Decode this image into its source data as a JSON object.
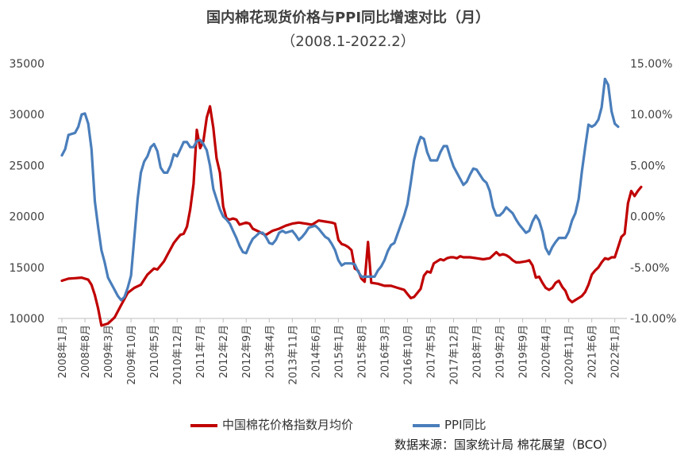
{
  "chart_data": {
    "type": "line",
    "title": "国内棉花现货价格与PPI同比增速对比（月）",
    "subtitle": "（2008.1-2022.2）",
    "source": "数据来源：国家统计局 棉花展望（BCO）",
    "y_left": {
      "ylim": [
        10000,
        35000
      ],
      "ticks": [
        "10000",
        "15000",
        "20000",
        "25000",
        "30000",
        "35000"
      ]
    },
    "y_right": {
      "ylim": [
        -10,
        15
      ],
      "ticks": [
        "-10.00%",
        "-5.00%",
        "0.00%",
        "5.00%",
        "10.00%",
        "15.00%"
      ]
    },
    "x_ticks": [
      "2008年1月",
      "2008年8月",
      "2009年3月",
      "2009年10月",
      "2010年5月",
      "2010年12月",
      "2011年7月",
      "2012年2月",
      "2012年9月",
      "2013年4月",
      "2013年11月",
      "2014年6月",
      "2015年1月",
      "2015年8月",
      "2016年3月",
      "2016年10月",
      "2017年5月",
      "2017年12月",
      "2018年7月",
      "2019年2月",
      "2019年9月",
      "2020年4月",
      "2020年11月",
      "2021年6月",
      "2022年1月"
    ],
    "grid": false,
    "legend_position": "bottom",
    "series": [
      {
        "name": "中国棉花价格指数月均价",
        "axis": "left",
        "color": "#C00000",
        "values": [
          [
            0,
            13700
          ],
          [
            2,
            13900
          ],
          [
            4,
            13950
          ],
          [
            6,
            14000
          ],
          [
            8,
            13800
          ],
          [
            9,
            13300
          ],
          [
            10,
            12300
          ],
          [
            11,
            11000
          ],
          [
            12,
            9300
          ],
          [
            14,
            9500
          ],
          [
            16,
            10100
          ],
          [
            18,
            11300
          ],
          [
            20,
            12500
          ],
          [
            22,
            13000
          ],
          [
            24,
            13300
          ],
          [
            26,
            14300
          ],
          [
            28,
            14900
          ],
          [
            29,
            14800
          ],
          [
            31,
            15600
          ],
          [
            32,
            16200
          ],
          [
            34,
            17400
          ],
          [
            35,
            17800
          ],
          [
            36,
            18200
          ],
          [
            37,
            18300
          ],
          [
            38,
            19000
          ],
          [
            39,
            20700
          ],
          [
            40,
            23200
          ],
          [
            41,
            28500
          ],
          [
            42,
            26700
          ],
          [
            43,
            27400
          ],
          [
            44,
            29700
          ],
          [
            45,
            30800
          ],
          [
            46,
            28700
          ],
          [
            47,
            25700
          ],
          [
            48,
            24300
          ],
          [
            49,
            21000
          ],
          [
            50,
            19800
          ],
          [
            51,
            19700
          ],
          [
            52,
            19800
          ],
          [
            53,
            19700
          ],
          [
            54,
            19200
          ],
          [
            56,
            19400
          ],
          [
            57,
            19300
          ],
          [
            58,
            18800
          ],
          [
            60,
            18500
          ],
          [
            61,
            18300
          ],
          [
            62,
            18200
          ],
          [
            64,
            18600
          ],
          [
            66,
            18800
          ],
          [
            68,
            19100
          ],
          [
            70,
            19300
          ],
          [
            72,
            19400
          ],
          [
            74,
            19300
          ],
          [
            76,
            19200
          ],
          [
            78,
            19600
          ],
          [
            80,
            19500
          ],
          [
            82,
            19400
          ],
          [
            83,
            19300
          ],
          [
            84,
            17700
          ],
          [
            85,
            17300
          ],
          [
            86,
            17200
          ],
          [
            87,
            17000
          ],
          [
            88,
            16700
          ],
          [
            89,
            14900
          ],
          [
            90,
            14700
          ],
          [
            91,
            13900
          ],
          [
            92,
            13600
          ],
          [
            93,
            17500
          ],
          [
            94,
            13500
          ],
          [
            96,
            13400
          ],
          [
            98,
            13200
          ],
          [
            100,
            13200
          ],
          [
            102,
            13000
          ],
          [
            104,
            12800
          ],
          [
            105,
            12400
          ],
          [
            106,
            12000
          ],
          [
            107,
            12100
          ],
          [
            108,
            12500
          ],
          [
            109,
            12900
          ],
          [
            110,
            14200
          ],
          [
            111,
            14600
          ],
          [
            112,
            14500
          ],
          [
            113,
            15400
          ],
          [
            115,
            15800
          ],
          [
            116,
            15700
          ],
          [
            117,
            15900
          ],
          [
            118,
            16000
          ],
          [
            119,
            16000
          ],
          [
            120,
            15900
          ],
          [
            121,
            16100
          ],
          [
            122,
            16000
          ],
          [
            124,
            16000
          ],
          [
            126,
            15900
          ],
          [
            128,
            15800
          ],
          [
            130,
            15900
          ],
          [
            131,
            16200
          ],
          [
            132,
            16500
          ],
          [
            133,
            16200
          ],
          [
            134,
            16300
          ],
          [
            135,
            16200
          ],
          [
            136,
            16000
          ],
          [
            137,
            15700
          ],
          [
            138,
            15500
          ],
          [
            139,
            15500
          ],
          [
            141,
            15600
          ],
          [
            142,
            15700
          ],
          [
            143,
            15200
          ],
          [
            144,
            14000
          ],
          [
            145,
            14100
          ],
          [
            146,
            13500
          ],
          [
            147,
            13000
          ],
          [
            148,
            12800
          ],
          [
            149,
            13000
          ],
          [
            150,
            13500
          ],
          [
            151,
            13700
          ],
          [
            152,
            13100
          ],
          [
            153,
            12700
          ],
          [
            154,
            11900
          ],
          [
            155,
            11600
          ],
          [
            156,
            11800
          ],
          [
            157,
            12000
          ],
          [
            158,
            12200
          ],
          [
            159,
            12600
          ],
          [
            160,
            13300
          ],
          [
            161,
            14300
          ],
          [
            162,
            14700
          ],
          [
            163,
            15000
          ],
          [
            164,
            15500
          ],
          [
            165,
            15900
          ],
          [
            166,
            15800
          ],
          [
            167,
            16000
          ],
          [
            168,
            16000
          ],
          [
            169,
            17000
          ],
          [
            170,
            18000
          ],
          [
            171,
            18300
          ],
          [
            172,
            21300
          ],
          [
            173,
            22500
          ],
          [
            174,
            22000
          ],
          [
            175,
            22500
          ],
          [
            176,
            22900
          ]
        ]
      },
      {
        "name": "PPI同比",
        "axis": "right",
        "color": "#4A7EBB",
        "values": [
          [
            0,
            6.0
          ],
          [
            1,
            6.6
          ],
          [
            2,
            8.0
          ],
          [
            4,
            8.2
          ],
          [
            5,
            8.8
          ],
          [
            6,
            10.0
          ],
          [
            7,
            10.1
          ],
          [
            8,
            9.1
          ],
          [
            9,
            6.6
          ],
          [
            10,
            1.5
          ],
          [
            11,
            -1.0
          ],
          [
            12,
            -3.3
          ],
          [
            13,
            -4.5
          ],
          [
            14,
            -6.0
          ],
          [
            15,
            -6.6
          ],
          [
            16,
            -7.2
          ],
          [
            17,
            -7.8
          ],
          [
            18,
            -8.2
          ],
          [
            19,
            -7.9
          ],
          [
            20,
            -7.0
          ],
          [
            21,
            -5.8
          ],
          [
            22,
            -2.1
          ],
          [
            23,
            1.7
          ],
          [
            24,
            4.3
          ],
          [
            25,
            5.4
          ],
          [
            26,
            5.9
          ],
          [
            27,
            6.8
          ],
          [
            28,
            7.1
          ],
          [
            29,
            6.4
          ],
          [
            30,
            4.8
          ],
          [
            31,
            4.3
          ],
          [
            32,
            4.3
          ],
          [
            33,
            5.0
          ],
          [
            34,
            6.1
          ],
          [
            35,
            5.9
          ],
          [
            36,
            6.6
          ],
          [
            37,
            7.3
          ],
          [
            38,
            7.3
          ],
          [
            39,
            6.8
          ],
          [
            40,
            6.8
          ],
          [
            41,
            7.4
          ],
          [
            42,
            7.5
          ],
          [
            43,
            7.1
          ],
          [
            44,
            6.5
          ],
          [
            45,
            5.0
          ],
          [
            46,
            2.7
          ],
          [
            47,
            1.7
          ],
          [
            48,
            0.7
          ],
          [
            49,
            0.0
          ],
          [
            50,
            -0.3
          ],
          [
            51,
            -0.7
          ],
          [
            52,
            -1.4
          ],
          [
            53,
            -2.1
          ],
          [
            54,
            -2.9
          ],
          [
            55,
            -3.5
          ],
          [
            56,
            -3.6
          ],
          [
            57,
            -2.8
          ],
          [
            58,
            -2.2
          ],
          [
            59,
            -1.9
          ],
          [
            60,
            -1.6
          ],
          [
            61,
            -1.6
          ],
          [
            62,
            -2.0
          ],
          [
            63,
            -2.6
          ],
          [
            64,
            -2.7
          ],
          [
            65,
            -2.3
          ],
          [
            66,
            -1.6
          ],
          [
            67,
            -1.4
          ],
          [
            68,
            -1.6
          ],
          [
            69,
            -1.5
          ],
          [
            70,
            -1.4
          ],
          [
            71,
            -1.8
          ],
          [
            72,
            -2.3
          ],
          [
            73,
            -2.0
          ],
          [
            74,
            -1.6
          ],
          [
            75,
            -1.1
          ],
          [
            76,
            -1.0
          ],
          [
            77,
            -0.9
          ],
          [
            78,
            -1.2
          ],
          [
            79,
            -1.6
          ],
          [
            80,
            -2.0
          ],
          [
            81,
            -2.2
          ],
          [
            82,
            -2.7
          ],
          [
            83,
            -3.3
          ],
          [
            84,
            -4.3
          ],
          [
            85,
            -4.8
          ],
          [
            86,
            -4.6
          ],
          [
            87,
            -4.6
          ],
          [
            88,
            -4.6
          ],
          [
            89,
            -4.7
          ],
          [
            90,
            -5.4
          ],
          [
            91,
            -5.9
          ],
          [
            92,
            -5.9
          ],
          [
            93,
            -5.9
          ],
          [
            94,
            -5.9
          ],
          [
            95,
            -5.9
          ],
          [
            96,
            -5.3
          ],
          [
            97,
            -4.9
          ],
          [
            98,
            -4.3
          ],
          [
            99,
            -3.4
          ],
          [
            100,
            -2.8
          ],
          [
            101,
            -2.6
          ],
          [
            102,
            -1.7
          ],
          [
            103,
            -0.8
          ],
          [
            104,
            0.1
          ],
          [
            105,
            1.2
          ],
          [
            106,
            3.3
          ],
          [
            107,
            5.5
          ],
          [
            108,
            6.9
          ],
          [
            109,
            7.8
          ],
          [
            110,
            7.6
          ],
          [
            111,
            6.3
          ],
          [
            112,
            5.5
          ],
          [
            113,
            5.5
          ],
          [
            114,
            5.5
          ],
          [
            115,
            6.3
          ],
          [
            116,
            6.9
          ],
          [
            117,
            6.9
          ],
          [
            118,
            5.8
          ],
          [
            119,
            4.9
          ],
          [
            120,
            4.3
          ],
          [
            121,
            3.7
          ],
          [
            122,
            3.1
          ],
          [
            123,
            3.4
          ],
          [
            124,
            4.1
          ],
          [
            125,
            4.7
          ],
          [
            126,
            4.6
          ],
          [
            127,
            4.1
          ],
          [
            128,
            3.6
          ],
          [
            129,
            3.3
          ],
          [
            130,
            2.5
          ],
          [
            131,
            0.9
          ],
          [
            132,
            0.1
          ],
          [
            133,
            0.1
          ],
          [
            134,
            0.4
          ],
          [
            135,
            0.9
          ],
          [
            136,
            0.6
          ],
          [
            137,
            0.3
          ],
          [
            138,
            -0.3
          ],
          [
            139,
            -0.8
          ],
          [
            140,
            -1.2
          ],
          [
            141,
            -1.6
          ],
          [
            142,
            -1.4
          ],
          [
            143,
            -0.5
          ],
          [
            144,
            0.1
          ],
          [
            145,
            -0.4
          ],
          [
            146,
            -1.5
          ],
          [
            147,
            -3.1
          ],
          [
            148,
            -3.7
          ],
          [
            149,
            -3.0
          ],
          [
            150,
            -2.5
          ],
          [
            151,
            -2.1
          ],
          [
            152,
            -2.1
          ],
          [
            153,
            -2.1
          ],
          [
            154,
            -1.5
          ],
          [
            155,
            -0.4
          ],
          [
            156,
            0.3
          ],
          [
            157,
            1.7
          ],
          [
            158,
            4.4
          ],
          [
            159,
            6.8
          ],
          [
            160,
            9.0
          ],
          [
            161,
            8.8
          ],
          [
            162,
            9.0
          ],
          [
            163,
            9.5
          ],
          [
            164,
            10.7
          ],
          [
            165,
            13.5
          ],
          [
            166,
            12.9
          ],
          [
            167,
            10.3
          ],
          [
            168,
            9.1
          ],
          [
            169,
            8.8
          ]
        ]
      }
    ]
  }
}
